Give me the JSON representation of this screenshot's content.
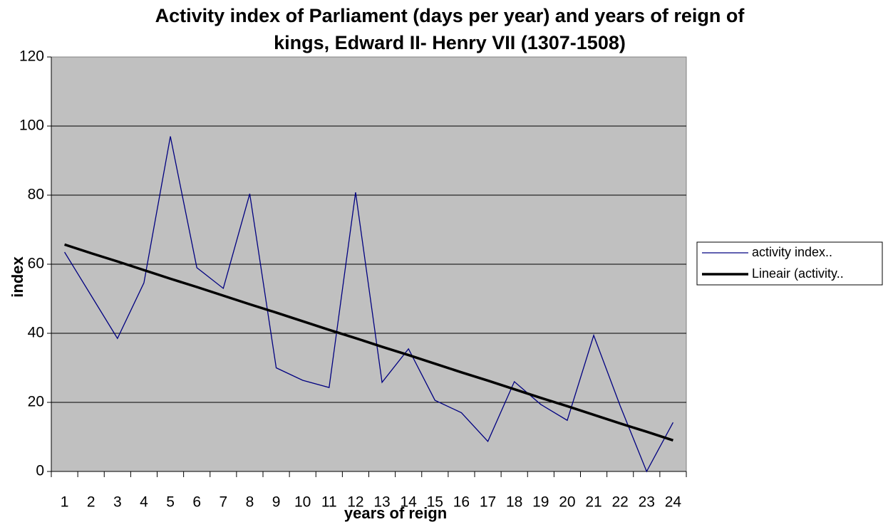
{
  "chart_data": {
    "type": "line",
    "title": [
      "Activity index of Parliament (days per year) and years of reign of",
      "kings, Edward II- Henry VII (1307-1508)"
    ],
    "xlabel": "years of reign",
    "ylabel": "index",
    "categories": [
      "1",
      "2",
      "3",
      "4",
      "5",
      "6",
      "7",
      "8",
      "9",
      "10",
      "11",
      "12",
      "13",
      "14",
      "15",
      "16",
      "17",
      "18",
      "19",
      "20",
      "21",
      "22",
      "23",
      "24"
    ],
    "series": [
      {
        "name": "activity index..",
        "color": "#000080",
        "width": 1.3,
        "values": [
          63.5,
          51,
          38.5,
          54.6,
          97,
          59,
          53,
          80.4,
          30,
          26.4,
          24.3,
          80.8,
          25.8,
          35.5,
          20.6,
          17,
          8.7,
          26,
          19.4,
          14.8,
          39.4,
          19,
          0,
          14.2
        ]
      },
      {
        "name": "Lineair (activity..",
        "color": "#000000",
        "width": 3.5,
        "values": [
          65.7,
          63.2,
          60.8,
          58.3,
          55.8,
          53.4,
          50.9,
          48.4,
          46,
          43.5,
          41,
          38.6,
          36.1,
          33.7,
          31.2,
          28.7,
          26.3,
          23.8,
          21.3,
          18.9,
          16.4,
          13.9,
          11.5,
          9
        ]
      }
    ],
    "ylim": [
      0,
      120
    ],
    "yticks": [
      0,
      20,
      40,
      60,
      80,
      100,
      120
    ],
    "grid": true,
    "legend": "right"
  }
}
